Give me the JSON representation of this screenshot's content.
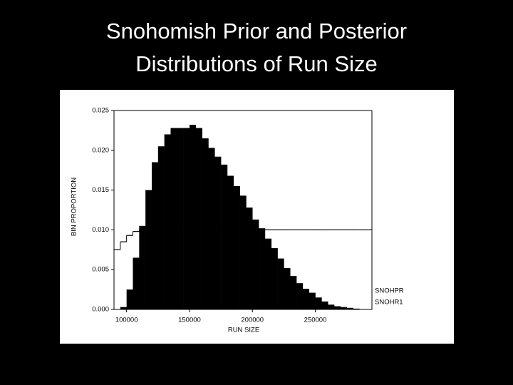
{
  "chart_data": {
    "type": "histogram",
    "title": [
      "Snohomish Prior and Posterior",
      "Distributions of Run Size"
    ],
    "xlabel": "RUN SIZE",
    "ylabel": "BIN PROPORTION",
    "bins": [
      90000,
      95000,
      100000,
      105000,
      110000,
      115000,
      120000,
      125000,
      130000,
      135000,
      140000,
      145000,
      150000,
      155000,
      160000,
      165000,
      170000,
      175000,
      180000,
      185000,
      190000,
      195000,
      200000,
      205000,
      210000,
      215000,
      220000,
      225000,
      230000,
      235000,
      240000,
      245000,
      250000,
      255000,
      260000,
      265000,
      270000,
      275000,
      280000,
      285000,
      290000,
      295000
    ],
    "series": [
      {
        "name": "SNOHPR",
        "style": "step",
        "color": "#000000",
        "values": [
          0.0075,
          0.0085,
          0.0093,
          0.0098,
          0.01,
          0.01,
          0.01,
          0.01,
          0.01,
          0.01,
          0.01,
          0.01,
          0.01,
          0.01,
          0.01,
          0.01,
          0.01,
          0.01,
          0.01,
          0.01,
          0.01,
          0.01,
          0.01,
          0.01,
          0.01,
          0.01,
          0.01,
          0.01,
          0.01,
          0.01,
          0.01,
          0.01,
          0.01,
          0.01,
          0.01,
          0.01,
          0.01,
          0.01,
          0.01,
          0.01,
          0.01
        ]
      },
      {
        "name": "SNOHR1",
        "style": "bar",
        "color": "#000000",
        "values": [
          0,
          0.0003,
          0.0025,
          0.0065,
          0.0105,
          0.015,
          0.0185,
          0.0205,
          0.022,
          0.0228,
          0.0228,
          0.0228,
          0.0232,
          0.0228,
          0.0215,
          0.0203,
          0.0192,
          0.0182,
          0.0168,
          0.0155,
          0.0143,
          0.0128,
          0.0113,
          0.0102,
          0.0089,
          0.0077,
          0.0064,
          0.0052,
          0.0042,
          0.0033,
          0.0026,
          0.0021,
          0.0015,
          0.001,
          0.0006,
          0.0004,
          0.0003,
          0.0002,
          0.0001,
          0,
          0
        ]
      }
    ],
    "xlim": [
      90000,
      295000
    ],
    "xticks": [
      100000,
      150000,
      200000,
      250000
    ],
    "ylim": [
      0,
      0.025
    ],
    "yticks": [
      {
        "value": 0,
        "label": "0.000"
      },
      0.005,
      {
        "value": 0.01,
        "label": "0.010"
      },
      0.015,
      {
        "value": 0.02,
        "label": "0.020"
      },
      0.025
    ],
    "legend": "lower right"
  }
}
